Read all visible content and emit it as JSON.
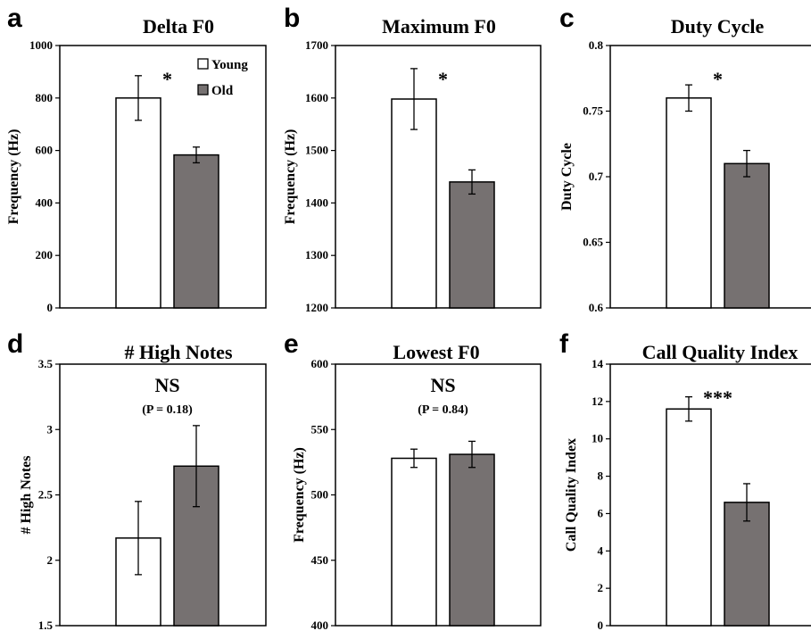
{
  "colors": {
    "young": "#ffffff",
    "old": "#767171",
    "stroke": "#000000"
  },
  "legend": {
    "young_label": "Young",
    "old_label": "Old"
  },
  "chart_data": [
    {
      "type": "bar",
      "letter": "a",
      "title": "Delta F0",
      "ylabel": "Frequency (Hz)",
      "ylim": [
        0,
        1000
      ],
      "yticks": [
        "0",
        "200",
        "400",
        "600",
        "800",
        "1000"
      ],
      "categories": [
        "Young",
        "Old"
      ],
      "values": [
        800,
        583
      ],
      "errors": [
        85,
        30
      ],
      "significance": "*",
      "pvalue": "",
      "legend": true
    },
    {
      "type": "bar",
      "letter": "b",
      "title": "Maximum F0",
      "ylabel": "Frequency (Hz)",
      "ylim": [
        1200,
        1700
      ],
      "yticks": [
        "1200",
        "1300",
        "1400",
        "1500",
        "1600",
        "1700"
      ],
      "categories": [
        "Young",
        "Old"
      ],
      "values": [
        1598,
        1440
      ],
      "errors": [
        58,
        23
      ],
      "significance": "*",
      "pvalue": "",
      "legend": false
    },
    {
      "type": "bar",
      "letter": "c",
      "title": "Duty Cycle",
      "ylabel": "Duty Cycle",
      "ylim": [
        0.6,
        0.8
      ],
      "yticks": [
        "0.6",
        "0.65",
        "0.7",
        "0.75",
        "0.8"
      ],
      "categories": [
        "Young",
        "Old"
      ],
      "values": [
        0.76,
        0.71
      ],
      "errors": [
        0.01,
        0.01
      ],
      "significance": "*",
      "pvalue": "",
      "legend": false
    },
    {
      "type": "bar",
      "letter": "d",
      "title": "# High Notes",
      "ylabel": "# High Notes",
      "ylim": [
        1.5,
        3.5
      ],
      "yticks": [
        "1.5",
        "2",
        "2.5",
        "3",
        "3.5"
      ],
      "categories": [
        "Young",
        "Old"
      ],
      "values": [
        2.17,
        2.72
      ],
      "errors": [
        0.28,
        0.31
      ],
      "significance": "NS",
      "pvalue": "(P = 0.18)",
      "legend": false
    },
    {
      "type": "bar",
      "letter": "e",
      "title": "Lowest F0",
      "ylabel": "Frequency (Hz)",
      "ylim": [
        400,
        600
      ],
      "yticks": [
        "400",
        "450",
        "500",
        "550",
        "600"
      ],
      "categories": [
        "Young",
        "Old"
      ],
      "values": [
        528,
        531
      ],
      "errors": [
        7,
        10
      ],
      "significance": "NS",
      "pvalue": "(P = 0.84)",
      "legend": false
    },
    {
      "type": "bar",
      "letter": "f",
      "title": "Call Quality Index",
      "ylabel": "Call Quality Index",
      "ylim": [
        0,
        14
      ],
      "yticks": [
        "0",
        "2",
        "4",
        "6",
        "8",
        "10",
        "12",
        "14"
      ],
      "categories": [
        "Young",
        "Old"
      ],
      "values": [
        11.6,
        6.6
      ],
      "errors": [
        0.65,
        1.0
      ],
      "significance": "***",
      "pvalue": "",
      "legend": false
    }
  ]
}
